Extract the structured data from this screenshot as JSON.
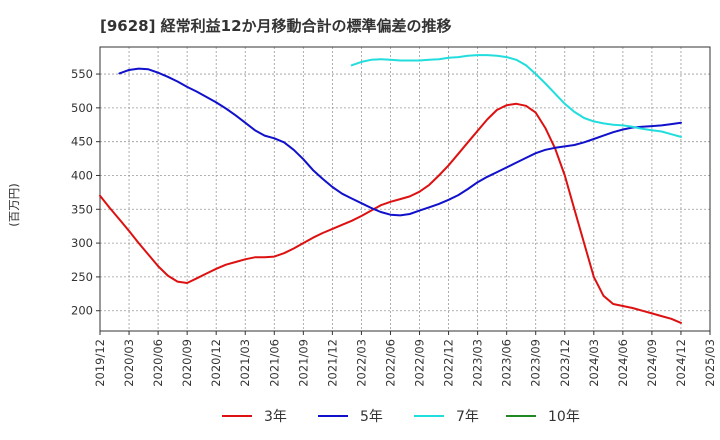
{
  "chart_data": {
    "type": "line",
    "title": "[9628]  経常利益12か月移動合計の標準偏差の推移",
    "ylabel": "(百万円)",
    "xlabel": "",
    "ylim": [
      170,
      590
    ],
    "yticks": [
      200,
      250,
      300,
      350,
      400,
      450,
      500,
      550
    ],
    "xlim": [
      "2019-12",
      "2025-03"
    ],
    "xticks": [
      "2019/12",
      "2020/03",
      "2020/06",
      "2020/09",
      "2020/12",
      "2021/03",
      "2021/06",
      "2021/09",
      "2021/12",
      "2022/03",
      "2022/06",
      "2022/09",
      "2022/12",
      "2023/03",
      "2023/06",
      "2023/09",
      "2023/12",
      "2024/03",
      "2024/06",
      "2024/09",
      "2024/12",
      "2025/03"
    ],
    "grid": true,
    "legend_position": "bottom",
    "series": [
      {
        "name": "3年",
        "color": "#dd1111",
        "points": [
          [
            "2019-12",
            370
          ],
          [
            "2020-01",
            352
          ],
          [
            "2020-02",
            335
          ],
          [
            "2020-03",
            318
          ],
          [
            "2020-04",
            300
          ],
          [
            "2020-05",
            283
          ],
          [
            "2020-06",
            266
          ],
          [
            "2020-07",
            252
          ],
          [
            "2020-08",
            243
          ],
          [
            "2020-09",
            241
          ],
          [
            "2020-10",
            248
          ],
          [
            "2020-11",
            255
          ],
          [
            "2020-12",
            262
          ],
          [
            "2021-01",
            268
          ],
          [
            "2021-02",
            272
          ],
          [
            "2021-03",
            276
          ],
          [
            "2021-04",
            279
          ],
          [
            "2021-05",
            279
          ],
          [
            "2021-06",
            280
          ],
          [
            "2021-07",
            285
          ],
          [
            "2021-08",
            292
          ],
          [
            "2021-09",
            300
          ],
          [
            "2021-10",
            308
          ],
          [
            "2021-11",
            315
          ],
          [
            "2021-12",
            321
          ],
          [
            "2022-01",
            327
          ],
          [
            "2022-02",
            333
          ],
          [
            "2022-03",
            340
          ],
          [
            "2022-04",
            348
          ],
          [
            "2022-05",
            356
          ],
          [
            "2022-06",
            361
          ],
          [
            "2022-07",
            365
          ],
          [
            "2022-08",
            369
          ],
          [
            "2022-09",
            376
          ],
          [
            "2022-10",
            386
          ],
          [
            "2022-11",
            400
          ],
          [
            "2022-12",
            415
          ],
          [
            "2023-01",
            432
          ],
          [
            "2023-02",
            449
          ],
          [
            "2023-03",
            466
          ],
          [
            "2023-04",
            483
          ],
          [
            "2023-05",
            497
          ],
          [
            "2023-06",
            504
          ],
          [
            "2023-07",
            506
          ],
          [
            "2023-08",
            503
          ],
          [
            "2023-09",
            493
          ],
          [
            "2023-10",
            470
          ],
          [
            "2023-11",
            440
          ],
          [
            "2023-12",
            400
          ],
          [
            "2024-01",
            350
          ],
          [
            "2024-02",
            300
          ],
          [
            "2024-03",
            250
          ],
          [
            "2024-04",
            222
          ],
          [
            "2024-05",
            210
          ],
          [
            "2024-06",
            207
          ],
          [
            "2024-07",
            204
          ],
          [
            "2024-08",
            200
          ],
          [
            "2024-09",
            196
          ],
          [
            "2024-10",
            192
          ],
          [
            "2024-11",
            188
          ],
          [
            "2024-12",
            182
          ]
        ]
      },
      {
        "name": "5年",
        "color": "#1111cc",
        "points": [
          [
            "2020-02",
            551
          ],
          [
            "2020-03",
            556
          ],
          [
            "2020-04",
            558
          ],
          [
            "2020-05",
            557
          ],
          [
            "2020-06",
            552
          ],
          [
            "2020-07",
            546
          ],
          [
            "2020-08",
            539
          ],
          [
            "2020-09",
            531
          ],
          [
            "2020-10",
            524
          ],
          [
            "2020-11",
            516
          ],
          [
            "2020-12",
            508
          ],
          [
            "2021-01",
            499
          ],
          [
            "2021-02",
            489
          ],
          [
            "2021-03",
            478
          ],
          [
            "2021-04",
            467
          ],
          [
            "2021-05",
            459
          ],
          [
            "2021-06",
            455
          ],
          [
            "2021-07",
            449
          ],
          [
            "2021-08",
            438
          ],
          [
            "2021-09",
            424
          ],
          [
            "2021-10",
            408
          ],
          [
            "2021-11",
            395
          ],
          [
            "2021-12",
            383
          ],
          [
            "2022-01",
            373
          ],
          [
            "2022-02",
            366
          ],
          [
            "2022-03",
            359
          ],
          [
            "2022-04",
            352
          ],
          [
            "2022-05",
            346
          ],
          [
            "2022-06",
            342
          ],
          [
            "2022-07",
            341
          ],
          [
            "2022-08",
            343
          ],
          [
            "2022-09",
            348
          ],
          [
            "2022-10",
            353
          ],
          [
            "2022-11",
            358
          ],
          [
            "2022-12",
            364
          ],
          [
            "2023-01",
            371
          ],
          [
            "2023-02",
            380
          ],
          [
            "2023-03",
            390
          ],
          [
            "2023-04",
            398
          ],
          [
            "2023-05",
            405
          ],
          [
            "2023-06",
            412
          ],
          [
            "2023-07",
            419
          ],
          [
            "2023-08",
            426
          ],
          [
            "2023-09",
            433
          ],
          [
            "2023-10",
            438
          ],
          [
            "2023-11",
            441
          ],
          [
            "2023-12",
            443
          ],
          [
            "2024-01",
            445
          ],
          [
            "2024-02",
            449
          ],
          [
            "2024-03",
            454
          ],
          [
            "2024-04",
            459
          ],
          [
            "2024-05",
            464
          ],
          [
            "2024-06",
            468
          ],
          [
            "2024-07",
            471
          ],
          [
            "2024-08",
            472
          ],
          [
            "2024-09",
            473
          ],
          [
            "2024-10",
            474
          ],
          [
            "2024-11",
            476
          ],
          [
            "2024-12",
            478
          ]
        ]
      },
      {
        "name": "7年",
        "color": "#22dddd",
        "points": [
          [
            "2022-02",
            563
          ],
          [
            "2022-03",
            568
          ],
          [
            "2022-04",
            571
          ],
          [
            "2022-05",
            572
          ],
          [
            "2022-06",
            571
          ],
          [
            "2022-07",
            570
          ],
          [
            "2022-08",
            570
          ],
          [
            "2022-09",
            570
          ],
          [
            "2022-10",
            571
          ],
          [
            "2022-11",
            572
          ],
          [
            "2022-12",
            574
          ],
          [
            "2023-01",
            575
          ],
          [
            "2023-02",
            577
          ],
          [
            "2023-03",
            578
          ],
          [
            "2023-04",
            578
          ],
          [
            "2023-05",
            577
          ],
          [
            "2023-06",
            575
          ],
          [
            "2023-07",
            571
          ],
          [
            "2023-08",
            563
          ],
          [
            "2023-09",
            550
          ],
          [
            "2023-10",
            536
          ],
          [
            "2023-11",
            521
          ],
          [
            "2023-12",
            506
          ],
          [
            "2024-01",
            494
          ],
          [
            "2024-02",
            485
          ],
          [
            "2024-03",
            480
          ],
          [
            "2024-04",
            477
          ],
          [
            "2024-05",
            475
          ],
          [
            "2024-06",
            474
          ],
          [
            "2024-07",
            472
          ],
          [
            "2024-08",
            469
          ],
          [
            "2024-09",
            467
          ],
          [
            "2024-10",
            465
          ],
          [
            "2024-11",
            461
          ],
          [
            "2024-12",
            457
          ]
        ]
      },
      {
        "name": "10年",
        "color": "#228822",
        "points": []
      }
    ]
  }
}
